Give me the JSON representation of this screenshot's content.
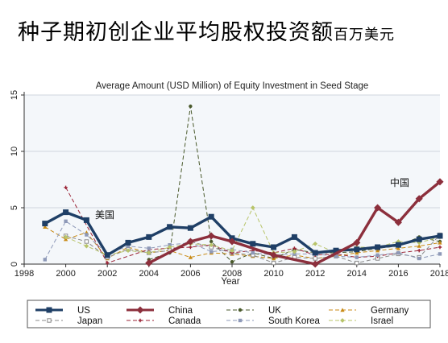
{
  "page_title": "种子期初创企业平均股权投资额",
  "page_title_unit": "百万美元",
  "annotations": {
    "us": "美国",
    "china": "中国"
  },
  "chart_data": {
    "type": "line",
    "title": "Average Amount (USD Million) of Equity Investment in Seed Stage",
    "xlabel": "Year",
    "ylabel": "",
    "xlim": [
      1998,
      2018
    ],
    "ylim": [
      0,
      15
    ],
    "x_ticks": [
      1998,
      2000,
      2002,
      2004,
      2006,
      2008,
      2010,
      2012,
      2014,
      2016,
      2018
    ],
    "y_ticks": [
      0,
      5,
      10,
      15
    ],
    "legend_position": "bottom",
    "series": [
      {
        "name": "US",
        "color": "#1f3f66",
        "style": "solid",
        "width": 3.4,
        "marker": "square",
        "x": [
          1999,
          2000,
          2001,
          2002,
          2003,
          2004,
          2005,
          2006,
          2007,
          2008,
          2009,
          2010,
          2011,
          2012,
          2013,
          2014,
          2015,
          2016,
          2017,
          2018
        ],
        "y": [
          3.6,
          4.6,
          3.9,
          0.8,
          1.9,
          2.4,
          3.3,
          3.2,
          4.2,
          2.3,
          1.8,
          1.5,
          2.4,
          1.0,
          1.2,
          1.3,
          1.5,
          1.7,
          2.2,
          2.5
        ]
      },
      {
        "name": "China",
        "color": "#8c2f3c",
        "style": "solid",
        "width": 3.4,
        "marker": "diamond",
        "x": [
          2004,
          2006,
          2007,
          2008,
          2010,
          2012,
          2014,
          2015,
          2016,
          2017,
          2018
        ],
        "y": [
          0.1,
          2.0,
          2.5,
          2.0,
          0.8,
          0.0,
          1.9,
          5.0,
          3.7,
          5.8,
          7.3
        ]
      },
      {
        "name": "UK",
        "color": "#4a5a2c",
        "style": "dash",
        "width": 1,
        "marker": "circle",
        "x": [
          2004,
          2005,
          2006,
          2007,
          2008,
          2009,
          2010,
          2011,
          2012,
          2013,
          2014,
          2015,
          2016,
          2017,
          2018
        ],
        "y": [
          0.4,
          1.0,
          14.0,
          2.0,
          0.2,
          1.0,
          0.5,
          1.3,
          1.0,
          1.0,
          1.1,
          1.4,
          1.6,
          2.4,
          2.0
        ]
      },
      {
        "name": "Germany",
        "color": "#c88a14",
        "style": "dash",
        "width": 1,
        "marker": "triangle",
        "x": [
          1999,
          2000,
          2001,
          2002,
          2003,
          2004,
          2005,
          2006,
          2007,
          2008,
          2009,
          2010,
          2011,
          2012,
          2013,
          2014,
          2015,
          2016,
          2017,
          2018
        ],
        "y": [
          3.3,
          2.2,
          2.8,
          0.5,
          1.5,
          1.0,
          1.2,
          0.6,
          1.0,
          0.9,
          0.7,
          0.5,
          0.8,
          0.5,
          0.7,
          1.0,
          1.2,
          1.4,
          1.6,
          1.9
        ]
      },
      {
        "name": "Japan",
        "color": "#8a8a8a",
        "style": "dash",
        "width": 1,
        "marker": "hollow-square",
        "x": [
          2000,
          2001,
          2002,
          2003,
          2004,
          2005,
          2006,
          2007,
          2008,
          2009,
          2010,
          2011,
          2012,
          2013,
          2014,
          2015,
          2016,
          2017,
          2018
        ],
        "y": [
          2.5,
          2.0,
          0.6,
          1.3,
          1.0,
          1.2,
          2.0,
          1.5,
          1.0,
          0.8,
          0.1,
          0.6,
          0.5,
          0.7,
          0.1,
          0.5,
          0.9,
          0.6,
          2.6
        ]
      },
      {
        "name": "Canada",
        "color": "#9b2335",
        "style": "dash",
        "width": 1,
        "marker": "plus",
        "x": [
          2000,
          2002,
          2004,
          2006,
          2007,
          2008,
          2009,
          2010,
          2011,
          2012,
          2013,
          2014,
          2015,
          2016,
          2017,
          2018
        ],
        "y": [
          6.8,
          0.1,
          1.3,
          1.5,
          1.7,
          1.0,
          1.2,
          1.0,
          1.4,
          0.8,
          0.9,
          0.6,
          0.7,
          1.0,
          1.2,
          1.5
        ]
      },
      {
        "name": "South Korea",
        "color": "#8e99b8",
        "style": "dash",
        "width": 1,
        "marker": "square",
        "x": [
          1999,
          2000,
          2001,
          2002,
          2003,
          2004,
          2005,
          2006,
          2007,
          2008,
          2009,
          2010,
          2011,
          2012,
          2013,
          2014,
          2015,
          2016,
          2017,
          2018
        ],
        "y": [
          0.4,
          3.8,
          2.6,
          0.9,
          1.6,
          1.4,
          1.7,
          1.9,
          1.1,
          1.3,
          1.0,
          0.8,
          0.9,
          0.9,
          0.7,
          0.6,
          0.8,
          1.0,
          0.5,
          0.9
        ]
      },
      {
        "name": "Israel",
        "color": "#b8c46a",
        "style": "dash",
        "width": 1,
        "marker": "diamond",
        "x": [
          2000,
          2001,
          2002,
          2003,
          2004,
          2005,
          2006,
          2007,
          2008,
          2009,
          2010,
          2011,
          2012,
          2013,
          2014,
          2015,
          2016,
          2017,
          2018
        ],
        "y": [
          2.4,
          1.6,
          0.8,
          1.2,
          1.0,
          1.5,
          1.8,
          1.7,
          1.2,
          5.0,
          1.0,
          1.1,
          1.8,
          1.0,
          1.5,
          1.5,
          2.0,
          1.9,
          2.4
        ]
      }
    ]
  }
}
